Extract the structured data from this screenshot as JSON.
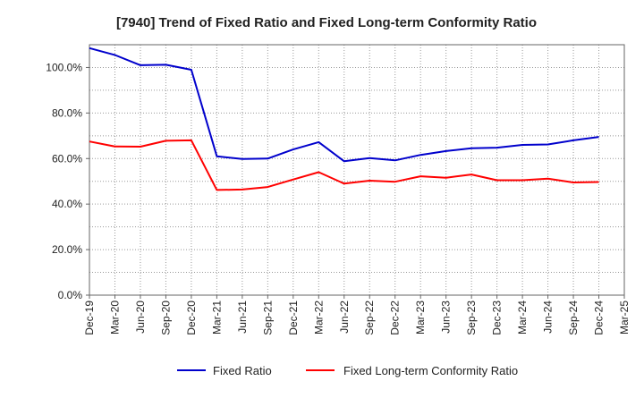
{
  "chart_data": {
    "type": "line",
    "title": "[7940]  Trend of Fixed Ratio and Fixed Long-term Conformity Ratio",
    "xlabel": "",
    "ylabel": "",
    "x_ticks": [
      "Dec-19",
      "Mar-20",
      "Jun-20",
      "Sep-20",
      "Dec-20",
      "Mar-21",
      "Jun-21",
      "Sep-21",
      "Dec-21",
      "Mar-22",
      "Jun-22",
      "Sep-22",
      "Dec-22",
      "Mar-23",
      "Jun-23",
      "Sep-23",
      "Dec-23",
      "Mar-24",
      "Jun-24",
      "Sep-24",
      "Dec-24",
      "Mar-25"
    ],
    "x": [
      "Dec-19",
      "Mar-20",
      "Jun-20",
      "Sep-20",
      "Dec-20",
      "Mar-21",
      "Jun-21",
      "Sep-21",
      "Dec-21",
      "Mar-22",
      "Jun-22",
      "Sep-22",
      "Dec-22",
      "Mar-23",
      "Jun-23",
      "Sep-23",
      "Dec-23",
      "Mar-24",
      "Jun-24",
      "Sep-24",
      "Dec-24"
    ],
    "y_ticks": [
      "0.0%",
      "20.0%",
      "40.0%",
      "60.0%",
      "80.0%",
      "100.0%"
    ],
    "ylim": [
      0,
      110
    ],
    "grid": true,
    "legend_position": "bottom",
    "series": [
      {
        "name": "Fixed Ratio",
        "color": "#0000cc",
        "values": [
          108.5,
          105.5,
          101.0,
          101.2,
          99.0,
          61.0,
          59.8,
          60.0,
          64.0,
          67.2,
          58.8,
          60.2,
          59.2,
          61.6,
          63.3,
          64.5,
          64.8,
          66.0,
          66.2,
          68.0,
          69.5
        ]
      },
      {
        "name": "Fixed Long-term Conformity Ratio",
        "color": "#ff0000",
        "values": [
          67.5,
          65.3,
          65.2,
          67.8,
          68.0,
          46.2,
          46.4,
          47.5,
          50.8,
          54.0,
          49.0,
          50.3,
          49.8,
          52.2,
          51.6,
          53.0,
          50.5,
          50.5,
          51.2,
          49.5,
          49.7
        ]
      }
    ]
  }
}
